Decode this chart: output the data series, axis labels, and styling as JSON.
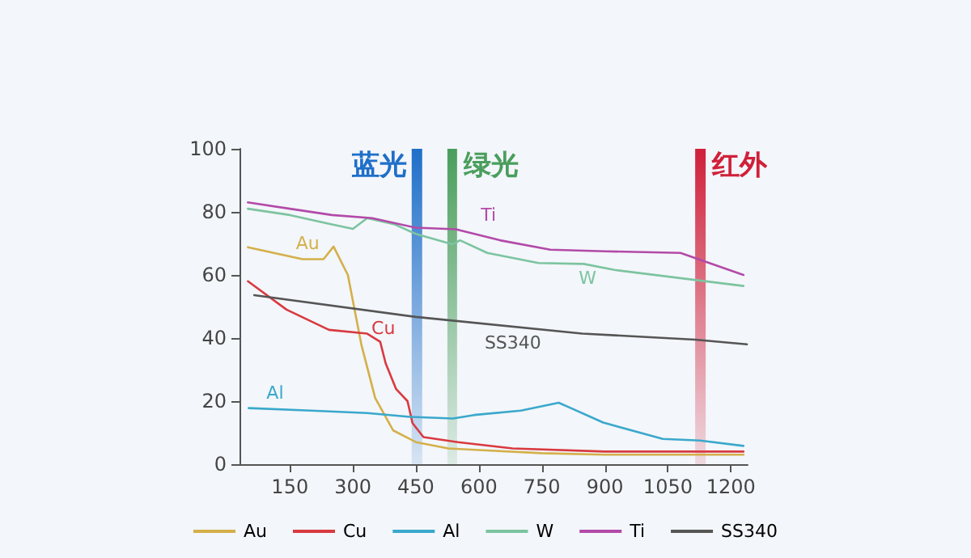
{
  "chart_data": {
    "type": "line",
    "series": [
      {
        "name": "Au",
        "color": "#d4b04a",
        "x": [
          50,
          180,
          230,
          254,
          288,
          320,
          353,
          396,
          450,
          527,
          600,
          750,
          900,
          1230
        ],
        "values": [
          68.8,
          65,
          65,
          69,
          60,
          38,
          21,
          10.7,
          7,
          5,
          4.5,
          3.5,
          3,
          3
        ]
      },
      {
        "name": "Cu",
        "color": "#d83a40",
        "x": [
          50,
          142,
          243,
          334,
          365,
          378,
          403,
          430,
          442,
          468,
          550,
          680,
          900,
          1230
        ],
        "values": [
          58,
          49,
          42.6,
          41.4,
          38.8,
          32,
          23.8,
          20,
          13,
          8.6,
          7,
          5,
          4,
          4
        ]
      },
      {
        "name": "Al",
        "color": "#3aa8cc",
        "x": [
          52,
          200,
          334,
          436,
          538,
          589,
          700,
          790,
          819,
          896,
          1038,
          1127,
          1230
        ],
        "values": [
          17.8,
          17,
          16.2,
          15,
          14.5,
          15.6,
          17,
          19.5,
          17.8,
          13.2,
          8,
          7.5,
          5.8
        ]
      },
      {
        "name": "W",
        "color": "#7cc4a0",
        "x": [
          50,
          150,
          250,
          300,
          334,
          400,
          450,
          538,
          555,
          620,
          742,
          850,
          923,
          1230
        ],
        "values": [
          81,
          79,
          76,
          74.6,
          78,
          76,
          73,
          69.7,
          71,
          67,
          63.8,
          63.5,
          61.6,
          56.5
        ]
      },
      {
        "name": "Ti",
        "color": "#b34aa8",
        "x": [
          50,
          150,
          250,
          346,
          449,
          545,
          650,
          770,
          900,
          1080,
          1230
        ],
        "values": [
          83,
          81,
          79,
          78,
          75,
          74.5,
          71,
          68,
          67.5,
          67,
          60
        ]
      },
      {
        "name": "SS340",
        "color": "#555555",
        "x": [
          65,
          450,
          846,
          1115,
          1238
        ],
        "values": [
          53.6,
          46.7,
          41.4,
          39.5,
          38
        ]
      }
    ],
    "bands": [
      {
        "axis": "x",
        "from": 440,
        "to": 465,
        "label": "蓝光",
        "color": "#1f6fc9"
      },
      {
        "axis": "x",
        "from": 525,
        "to": 548,
        "label": "绿光",
        "color": "#4a9e5c"
      },
      {
        "axis": "x",
        "from": 1115,
        "to": 1140,
        "label": "红外",
        "color": "#d0203a"
      }
    ],
    "xlim": [
      30,
      1240
    ],
    "xticks": [
      150,
      300,
      450,
      600,
      750,
      900,
      1050,
      1200
    ],
    "ylim": [
      0,
      100
    ],
    "yticks": [
      0,
      20,
      40,
      60,
      80,
      100
    ],
    "grid": false,
    "legend": "bottom",
    "marker": "none",
    "line_style": "solid"
  }
}
